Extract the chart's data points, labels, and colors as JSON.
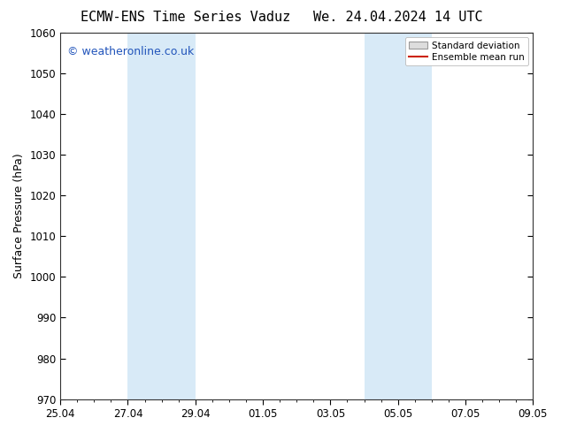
{
  "title_left": "ECMW-ENS Time Series Vaduz",
  "title_right": "We. 24.04.2024 14 UTC",
  "ylabel": "Surface Pressure (hPa)",
  "ylim": [
    970,
    1060
  ],
  "yticks": [
    970,
    980,
    990,
    1000,
    1010,
    1020,
    1030,
    1040,
    1050,
    1060
  ],
  "xlim": [
    0,
    14
  ],
  "xtick_labels": [
    "25.04",
    "27.04",
    "29.04",
    "01.05",
    "03.05",
    "05.05",
    "07.05",
    "09.05"
  ],
  "xtick_positions_days": [
    0,
    2,
    4,
    6,
    8,
    10,
    12,
    14
  ],
  "shaded_regions": [
    {
      "x0_days": 2,
      "x1_days": 4,
      "color": "#d8eaf7"
    },
    {
      "x0_days": 9,
      "x1_days": 11,
      "color": "#d8eaf7"
    }
  ],
  "watermark_text": "© weatheronline.co.uk",
  "watermark_color": "#2255bb",
  "watermark_fontsize": 9,
  "legend_std_label": "Standard deviation",
  "legend_mean_label": "Ensemble mean run",
  "legend_std_facecolor": "#dddddd",
  "legend_std_edgecolor": "#999999",
  "legend_mean_color": "#cc2200",
  "background_color": "#ffffff",
  "title_fontsize": 11,
  "ylabel_fontsize": 9,
  "tick_fontsize": 8.5,
  "fig_width": 6.34,
  "fig_height": 4.9,
  "dpi": 100
}
